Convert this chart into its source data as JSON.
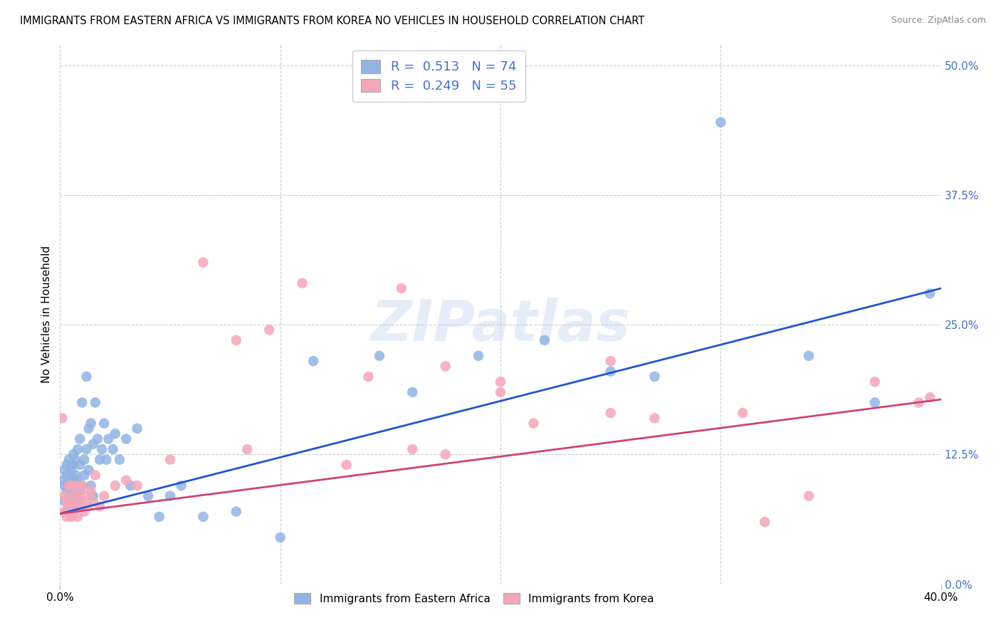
{
  "title": "IMMIGRANTS FROM EASTERN AFRICA VS IMMIGRANTS FROM KOREA NO VEHICLES IN HOUSEHOLD CORRELATION CHART",
  "source": "Source: ZipAtlas.com",
  "ylabel": "No Vehicles in Household",
  "ytick_labels": [
    "0.0%",
    "12.5%",
    "25.0%",
    "37.5%",
    "50.0%"
  ],
  "ytick_values": [
    0.0,
    0.125,
    0.25,
    0.375,
    0.5
  ],
  "xlim": [
    0.0,
    0.4
  ],
  "ylim": [
    0.0,
    0.52
  ],
  "blue_R": 0.513,
  "blue_N": 74,
  "pink_R": 0.249,
  "pink_N": 55,
  "blue_color": "#92b4e3",
  "pink_color": "#f4a7b9",
  "blue_line_color": "#2255cc",
  "pink_line_color": "#cc4477",
  "blue_line_start_y": 0.068,
  "blue_line_end_y": 0.285,
  "pink_line_start_y": 0.068,
  "pink_line_end_y": 0.178,
  "legend_label_blue": "Immigrants from Eastern Africa",
  "legend_label_pink": "Immigrants from Korea",
  "watermark_text": "ZIPatlas",
  "title_fontsize": 10.5,
  "source_fontsize": 9,
  "blue_scatter_x": [
    0.001,
    0.002,
    0.002,
    0.002,
    0.003,
    0.003,
    0.003,
    0.003,
    0.004,
    0.004,
    0.004,
    0.004,
    0.005,
    0.005,
    0.005,
    0.005,
    0.005,
    0.006,
    0.006,
    0.006,
    0.006,
    0.007,
    0.007,
    0.007,
    0.007,
    0.008,
    0.008,
    0.008,
    0.009,
    0.009,
    0.009,
    0.01,
    0.01,
    0.011,
    0.011,
    0.012,
    0.012,
    0.013,
    0.013,
    0.014,
    0.014,
    0.015,
    0.015,
    0.016,
    0.017,
    0.018,
    0.019,
    0.02,
    0.021,
    0.022,
    0.024,
    0.025,
    0.027,
    0.03,
    0.032,
    0.035,
    0.04,
    0.045,
    0.05,
    0.055,
    0.065,
    0.08,
    0.1,
    0.115,
    0.145,
    0.16,
    0.19,
    0.22,
    0.25,
    0.27,
    0.3,
    0.34,
    0.37,
    0.395
  ],
  "blue_scatter_y": [
    0.1,
    0.095,
    0.11,
    0.08,
    0.105,
    0.09,
    0.115,
    0.07,
    0.1,
    0.12,
    0.085,
    0.095,
    0.105,
    0.115,
    0.085,
    0.075,
    0.11,
    0.125,
    0.09,
    0.1,
    0.115,
    0.095,
    0.12,
    0.085,
    0.105,
    0.13,
    0.1,
    0.08,
    0.115,
    0.14,
    0.09,
    0.175,
    0.095,
    0.12,
    0.105,
    0.2,
    0.13,
    0.11,
    0.15,
    0.155,
    0.095,
    0.135,
    0.085,
    0.175,
    0.14,
    0.12,
    0.13,
    0.155,
    0.12,
    0.14,
    0.13,
    0.145,
    0.12,
    0.14,
    0.095,
    0.15,
    0.085,
    0.065,
    0.085,
    0.095,
    0.065,
    0.07,
    0.045,
    0.215,
    0.22,
    0.185,
    0.22,
    0.235,
    0.205,
    0.2,
    0.445,
    0.22,
    0.175,
    0.28
  ],
  "pink_scatter_x": [
    0.001,
    0.002,
    0.002,
    0.003,
    0.003,
    0.004,
    0.004,
    0.005,
    0.005,
    0.005,
    0.006,
    0.006,
    0.007,
    0.007,
    0.008,
    0.008,
    0.009,
    0.009,
    0.01,
    0.01,
    0.011,
    0.012,
    0.013,
    0.014,
    0.015,
    0.016,
    0.018,
    0.02,
    0.025,
    0.03,
    0.035,
    0.05,
    0.065,
    0.08,
    0.095,
    0.11,
    0.14,
    0.155,
    0.175,
    0.2,
    0.215,
    0.25,
    0.27,
    0.31,
    0.34,
    0.37,
    0.395,
    0.175,
    0.25,
    0.085,
    0.13,
    0.16,
    0.2,
    0.32,
    0.39
  ],
  "pink_scatter_y": [
    0.16,
    0.085,
    0.07,
    0.08,
    0.065,
    0.095,
    0.075,
    0.08,
    0.095,
    0.065,
    0.085,
    0.07,
    0.075,
    0.095,
    0.08,
    0.065,
    0.09,
    0.075,
    0.08,
    0.095,
    0.07,
    0.085,
    0.075,
    0.09,
    0.08,
    0.105,
    0.075,
    0.085,
    0.095,
    0.1,
    0.095,
    0.12,
    0.31,
    0.235,
    0.245,
    0.29,
    0.2,
    0.285,
    0.21,
    0.185,
    0.155,
    0.215,
    0.16,
    0.165,
    0.085,
    0.195,
    0.18,
    0.125,
    0.165,
    0.13,
    0.115,
    0.13,
    0.195,
    0.06,
    0.175
  ]
}
